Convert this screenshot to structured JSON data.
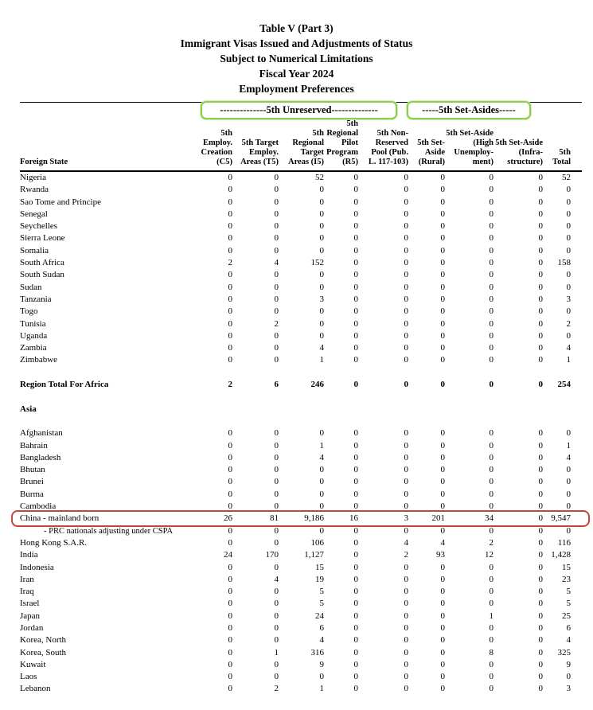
{
  "title": {
    "line1": "Table V (Part 3)",
    "line2": "Immigrant Visas Issued and Adjustments of Status",
    "line3": "Subject to Numerical Limitations",
    "line4": "Fiscal Year 2024",
    "line5": "Employment Preferences"
  },
  "group_headers": {
    "unreserved_label": "--------------5th Unreserved--------------",
    "set_asides_label": "-----5th Set-Asides-----",
    "box_color": "#8dce4a"
  },
  "highlight": {
    "row_name": "China - mainland born",
    "color": "#c2473d"
  },
  "columns": [
    {
      "key": "state",
      "label": "Foreign State"
    },
    {
      "key": "c5",
      "label": "5th\nEmploy.\nCreation\n(C5)"
    },
    {
      "key": "t5",
      "label": "5th Target\nEmploy.\nAreas (T5)"
    },
    {
      "key": "i5",
      "label": "5th\nRegional\nTarget\nAreas (I5)"
    },
    {
      "key": "r5",
      "label": "5th\nRegional\nPilot\nProgram\n(R5)"
    },
    {
      "key": "pool",
      "label": "5th Non-\nReserved\nPool (Pub.\nL. 117-103)"
    },
    {
      "key": "rural",
      "label": "5th Set-\nAside\n(Rural)"
    },
    {
      "key": "high",
      "label": "5th Set-Aside\n(High\nUnemploy-\nment)"
    },
    {
      "key": "infra",
      "label": "5th Set-Aside\n(Infra-\nstructure)"
    },
    {
      "key": "total",
      "label": "5th Total"
    }
  ],
  "rows": [
    {
      "type": "country",
      "name": "Nigeria",
      "values": [
        "0",
        "0",
        "52",
        "0",
        "0",
        "0",
        "0",
        "0",
        "52"
      ]
    },
    {
      "type": "country",
      "name": "Rwanda",
      "values": [
        "0",
        "0",
        "0",
        "0",
        "0",
        "0",
        "0",
        "0",
        "0"
      ]
    },
    {
      "type": "country",
      "name": "Sao Tome and Principe",
      "values": [
        "0",
        "0",
        "0",
        "0",
        "0",
        "0",
        "0",
        "0",
        "0"
      ]
    },
    {
      "type": "country",
      "name": "Senegal",
      "values": [
        "0",
        "0",
        "0",
        "0",
        "0",
        "0",
        "0",
        "0",
        "0"
      ]
    },
    {
      "type": "country",
      "name": "Seychelles",
      "values": [
        "0",
        "0",
        "0",
        "0",
        "0",
        "0",
        "0",
        "0",
        "0"
      ]
    },
    {
      "type": "country",
      "name": "Sierra Leone",
      "values": [
        "0",
        "0",
        "0",
        "0",
        "0",
        "0",
        "0",
        "0",
        "0"
      ]
    },
    {
      "type": "country",
      "name": "Somalia",
      "values": [
        "0",
        "0",
        "0",
        "0",
        "0",
        "0",
        "0",
        "0",
        "0"
      ]
    },
    {
      "type": "country",
      "name": "South Africa",
      "values": [
        "2",
        "4",
        "152",
        "0",
        "0",
        "0",
        "0",
        "0",
        "158"
      ]
    },
    {
      "type": "country",
      "name": "South Sudan",
      "values": [
        "0",
        "0",
        "0",
        "0",
        "0",
        "0",
        "0",
        "0",
        "0"
      ]
    },
    {
      "type": "country",
      "name": "Sudan",
      "values": [
        "0",
        "0",
        "0",
        "0",
        "0",
        "0",
        "0",
        "0",
        "0"
      ]
    },
    {
      "type": "country",
      "name": "Tanzania",
      "values": [
        "0",
        "0",
        "3",
        "0",
        "0",
        "0",
        "0",
        "0",
        "3"
      ]
    },
    {
      "type": "country",
      "name": "Togo",
      "values": [
        "0",
        "0",
        "0",
        "0",
        "0",
        "0",
        "0",
        "0",
        "0"
      ]
    },
    {
      "type": "country",
      "name": "Tunisia",
      "values": [
        "0",
        "2",
        "0",
        "0",
        "0",
        "0",
        "0",
        "0",
        "2"
      ]
    },
    {
      "type": "country",
      "name": "Uganda",
      "values": [
        "0",
        "0",
        "0",
        "0",
        "0",
        "0",
        "0",
        "0",
        "0"
      ]
    },
    {
      "type": "country",
      "name": "Zambia",
      "values": [
        "0",
        "0",
        "4",
        "0",
        "0",
        "0",
        "0",
        "0",
        "4"
      ]
    },
    {
      "type": "country",
      "name": "Zimbabwe",
      "values": [
        "0",
        "0",
        "1",
        "0",
        "0",
        "0",
        "0",
        "0",
        "1"
      ]
    },
    {
      "type": "spacer"
    },
    {
      "type": "total",
      "name": "Region Total For Africa",
      "values": [
        "2",
        "6",
        "246",
        "0",
        "0",
        "0",
        "0",
        "0",
        "254"
      ]
    },
    {
      "type": "spacer"
    },
    {
      "type": "section",
      "name": "Asia"
    },
    {
      "type": "spacer"
    },
    {
      "type": "country",
      "name": "Afghanistan",
      "values": [
        "0",
        "0",
        "0",
        "0",
        "0",
        "0",
        "0",
        "0",
        "0"
      ]
    },
    {
      "type": "country",
      "name": "Bahrain",
      "values": [
        "0",
        "0",
        "1",
        "0",
        "0",
        "0",
        "0",
        "0",
        "1"
      ]
    },
    {
      "type": "country",
      "name": "Bangladesh",
      "values": [
        "0",
        "0",
        "4",
        "0",
        "0",
        "0",
        "0",
        "0",
        "4"
      ]
    },
    {
      "type": "country",
      "name": "Bhutan",
      "values": [
        "0",
        "0",
        "0",
        "0",
        "0",
        "0",
        "0",
        "0",
        "0"
      ]
    },
    {
      "type": "country",
      "name": "Brunei",
      "values": [
        "0",
        "0",
        "0",
        "0",
        "0",
        "0",
        "0",
        "0",
        "0"
      ]
    },
    {
      "type": "country",
      "name": "Burma",
      "values": [
        "0",
        "0",
        "0",
        "0",
        "0",
        "0",
        "0",
        "0",
        "0"
      ]
    },
    {
      "type": "country",
      "name": "Cambodia",
      "values": [
        "0",
        "0",
        "0",
        "0",
        "0",
        "0",
        "0",
        "0",
        "0"
      ]
    },
    {
      "type": "country",
      "name": "China - mainland born",
      "values": [
        "26",
        "81",
        "9,186",
        "16",
        "3",
        "201",
        "34",
        "0",
        "9,547"
      ],
      "highlight": true
    },
    {
      "type": "sub",
      "name": "- PRC nationals adjusting under CSPA",
      "values": [
        "0",
        "0",
        "0",
        "0",
        "0",
        "0",
        "0",
        "0",
        "0"
      ]
    },
    {
      "type": "country",
      "name": "Hong Kong S.A.R.",
      "values": [
        "0",
        "0",
        "106",
        "0",
        "4",
        "4",
        "2",
        "0",
        "116"
      ]
    },
    {
      "type": "country",
      "name": "India",
      "values": [
        "24",
        "170",
        "1,127",
        "0",
        "2",
        "93",
        "12",
        "0",
        "1,428"
      ]
    },
    {
      "type": "country",
      "name": "Indonesia",
      "values": [
        "0",
        "0",
        "15",
        "0",
        "0",
        "0",
        "0",
        "0",
        "15"
      ]
    },
    {
      "type": "country",
      "name": "Iran",
      "values": [
        "0",
        "4",
        "19",
        "0",
        "0",
        "0",
        "0",
        "0",
        "23"
      ]
    },
    {
      "type": "country",
      "name": "Iraq",
      "values": [
        "0",
        "0",
        "5",
        "0",
        "0",
        "0",
        "0",
        "0",
        "5"
      ]
    },
    {
      "type": "country",
      "name": "Israel",
      "values": [
        "0",
        "0",
        "5",
        "0",
        "0",
        "0",
        "0",
        "0",
        "5"
      ]
    },
    {
      "type": "country",
      "name": "Japan",
      "values": [
        "0",
        "0",
        "24",
        "0",
        "0",
        "0",
        "1",
        "0",
        "25"
      ]
    },
    {
      "type": "country",
      "name": "Jordan",
      "values": [
        "0",
        "0",
        "6",
        "0",
        "0",
        "0",
        "0",
        "0",
        "6"
      ]
    },
    {
      "type": "country",
      "name": "Korea, North",
      "values": [
        "0",
        "0",
        "4",
        "0",
        "0",
        "0",
        "0",
        "0",
        "4"
      ]
    },
    {
      "type": "country",
      "name": "Korea, South",
      "values": [
        "0",
        "1",
        "316",
        "0",
        "0",
        "0",
        "8",
        "0",
        "325"
      ]
    },
    {
      "type": "country",
      "name": "Kuwait",
      "values": [
        "0",
        "0",
        "9",
        "0",
        "0",
        "0",
        "0",
        "0",
        "9"
      ]
    },
    {
      "type": "country",
      "name": "Laos",
      "values": [
        "0",
        "0",
        "0",
        "0",
        "0",
        "0",
        "0",
        "0",
        "0"
      ]
    },
    {
      "type": "country",
      "name": "Lebanon",
      "values": [
        "0",
        "2",
        "1",
        "0",
        "0",
        "0",
        "0",
        "0",
        "3"
      ]
    }
  ]
}
